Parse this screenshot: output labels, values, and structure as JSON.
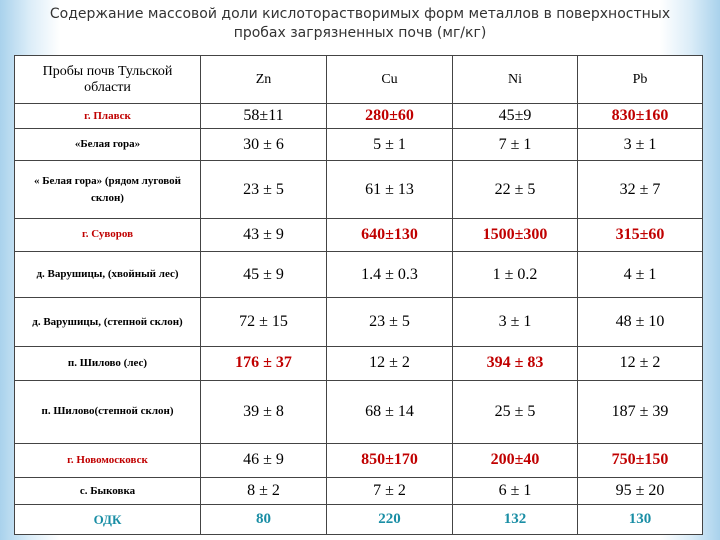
{
  "title": {
    "line1": "Содержание массовой доли кислоторастворимых форм металлов в поверхностных",
    "line2": "пробах загрязненных почв (мг/кг)"
  },
  "colors": {
    "highlight": "#c00000",
    "odk": "#1a8ea5",
    "text": "#000000"
  },
  "table": {
    "headers": [
      "Пробы почв Тульской области",
      "Zn",
      "Cu",
      "Ni",
      "Pb"
    ],
    "rows": [
      {
        "label": "г. Плавск",
        "label_red": true,
        "values": [
          "58±11",
          "280±60",
          "45±9",
          "830±160"
        ],
        "red": [
          false,
          true,
          false,
          true
        ]
      },
      {
        "label": "«Белая гора»",
        "label_red": false,
        "values": [
          "30 ± 6",
          "5 ± 1",
          "7 ± 1",
          "3 ± 1"
        ],
        "red": [
          false,
          false,
          false,
          false
        ]
      },
      {
        "label": "« Белая гора» (рядом луговой склон)",
        "label_red": false,
        "values": [
          "23 ± 5",
          "61 ± 13",
          "22 ± 5",
          "32 ± 7"
        ],
        "red": [
          false,
          false,
          false,
          false
        ]
      },
      {
        "label": "г. Суворов",
        "label_red": true,
        "values": [
          "43 ± 9",
          "640±130",
          "1500±300",
          "315±60"
        ],
        "red": [
          false,
          true,
          true,
          true
        ]
      },
      {
        "label": "д. Варушицы, (хвойный лес)",
        "label_red": false,
        "values": [
          "45 ± 9",
          "1.4 ± 0.3",
          "1 ± 0.2",
          "4 ± 1"
        ],
        "red": [
          false,
          false,
          false,
          false
        ]
      },
      {
        "label": "д. Варушицы, (степной склон)",
        "label_red": false,
        "values": [
          "72 ± 15",
          "23 ± 5",
          "3 ± 1",
          "48 ± 10"
        ],
        "red": [
          false,
          false,
          false,
          false
        ]
      },
      {
        "label": "п. Шилово (лес)",
        "label_red": false,
        "values": [
          "176 ± 37",
          "12 ± 2",
          "394 ± 83",
          "12 ± 2"
        ],
        "red": [
          true,
          false,
          true,
          false
        ]
      },
      {
        "label": "п. Шилово(степной склон)",
        "label_red": false,
        "values": [
          "39 ± 8",
          "68 ± 14",
          "25 ± 5",
          "187 ± 39"
        ],
        "red": [
          false,
          false,
          false,
          false
        ]
      },
      {
        "label": "г. Новомосковск",
        "label_red": true,
        "values": [
          "46 ± 9",
          "850±170",
          "200±40",
          "750±150"
        ],
        "red": [
          false,
          true,
          true,
          true
        ]
      },
      {
        "label": "с. Быковка",
        "label_red": false,
        "values": [
          "8 ± 2",
          "7 ± 2",
          "6 ± 1",
          "95 ± 20"
        ],
        "red": [
          false,
          false,
          false,
          false
        ]
      },
      {
        "label": "ОДК",
        "label_red": false,
        "values": [
          "80",
          "220",
          "132",
          "130"
        ],
        "red": [
          false,
          false,
          false,
          false
        ],
        "odk": true
      }
    ]
  }
}
